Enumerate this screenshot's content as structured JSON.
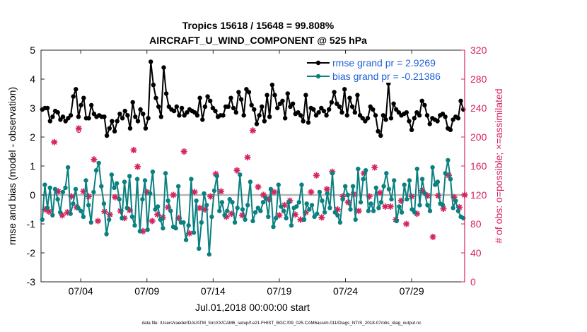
{
  "chart_data": {
    "type": "line",
    "title_line1": "Tropics 15618 / 15648 = 99.808%",
    "title_line2": "AIRCRAFT_U_WIND_COMPONENT @ 525 hPa",
    "xlabel": "Jul.01,2018 00:00:00 start",
    "ylabel_left": "rmse and bias (model - observation)",
    "ylabel_right": "# of obs: o=possible; ×=assimilated",
    "footnote": "data file: /Users/raeder/DAI/ATM_forcXX/CAM6_setup/f.e21.FHIST_BGC.f09_025.CAM6assim.011/Diags_NTrS_2018-07/obs_diag_output.nc",
    "xlim": [
      1,
      33
    ],
    "ylim_left": [
      -3,
      5
    ],
    "ylim_right": [
      0,
      320
    ],
    "x_ticks": [
      4,
      9,
      14,
      19,
      24,
      29
    ],
    "x_tick_labels": [
      "07/04",
      "07/09",
      "07/14",
      "07/19",
      "07/24",
      "07/29"
    ],
    "y_left_ticks": [
      -3,
      -2,
      -1,
      0,
      1,
      2,
      3,
      4,
      5
    ],
    "y_right_ticks": [
      0,
      40,
      80,
      120,
      160,
      200,
      240,
      280,
      320
    ],
    "colors": {
      "rmse": "#000000",
      "bias": "#0a8080",
      "obs": "#d6245e",
      "zero_line": "#b4b4b4",
      "legend_text": "#1f5fd6"
    },
    "series": [
      {
        "name": "rmse grand pr = 2.9269",
        "axis": "left",
        "style": "line-dot",
        "values": [
          2.95,
          3.0,
          3.0,
          2.55,
          2.7,
          2.9,
          2.85,
          2.6,
          2.7,
          2.55,
          2.65,
          2.75,
          3.4,
          3.65,
          2.7,
          3.1,
          3.35,
          2.65,
          2.65,
          3.1,
          2.8,
          2.7,
          2.75,
          2.7,
          2.7,
          2.05,
          2.3,
          2.55,
          2.2,
          2.55,
          2.8,
          2.65,
          2.9,
          2.75,
          2.3,
          3.2,
          2.7,
          2.55,
          2.95,
          2.8,
          2.3,
          2.65,
          4.6,
          3.8,
          3.35,
          3.05,
          2.7,
          4.4,
          3.5,
          3.05,
          2.95,
          2.9,
          3.05,
          2.75,
          3.0,
          2.75,
          2.85,
          2.95,
          2.9,
          2.85,
          2.75,
          3.35,
          2.6,
          3.05,
          3.4,
          3.25,
          3.0,
          2.9,
          2.7,
          2.75,
          2.75,
          3.05,
          3.05,
          3.35,
          3.0,
          2.85,
          3.55,
          3.3,
          2.75,
          3.65,
          3.55,
          3.1,
          2.95,
          2.45,
          2.75,
          3.05,
          2.55,
          3.45,
          2.7,
          3.8,
          3.45,
          3.0,
          3.15,
          3.25,
          2.65,
          3.5,
          3.05,
          3.15,
          2.8,
          2.85,
          2.75,
          2.55,
          3.45,
          2.5,
          3.0,
          2.95,
          2.75,
          2.85,
          3.0,
          2.9,
          2.75,
          2.95,
          3.2,
          3.55,
          3.15,
          3.05,
          2.85,
          3.65,
          2.75,
          3.35,
          3.05,
          2.85,
          3.45,
          2.75,
          2.65,
          2.55,
          2.65,
          3.05,
          2.95,
          2.75,
          2.2,
          2.05,
          2.75,
          2.6,
          3.85,
          2.65,
          3.15,
          2.95,
          2.85,
          2.75,
          2.8,
          2.85,
          2.55,
          2.25,
          2.65,
          2.85,
          2.75,
          3.25,
          3.1,
          2.75,
          2.45,
          2.65,
          2.6,
          2.55,
          2.75,
          2.8,
          2.7,
          2.3,
          2.25,
          2.6,
          2.7,
          2.65,
          3.25,
          2.95
        ]
      },
      {
        "name": "bias grand pr = -0.21386",
        "axis": "left",
        "style": "line-dot",
        "values": [
          -0.85,
          0.35,
          -0.45,
          0.25,
          -0.7,
          0.2,
          -0.15,
          -0.6,
          0.1,
          0.25,
          0.95,
          -0.65,
          -0.3,
          0.2,
          -0.45,
          -0.55,
          -0.75,
          0.5,
          -0.35,
          -0.95,
          0.1,
          0.85,
          1.1,
          0.3,
          -0.3,
          -1.35,
          -0.85,
          0.7,
          0.25,
          0.4,
          -0.15,
          -0.8,
          0.45,
          -0.45,
          0.65,
          -0.75,
          -1.05,
          0.55,
          -1.25,
          -0.15,
          0.5,
          -1.2,
          0.05,
          0.8,
          -0.5,
          -0.4,
          -0.85,
          -1.15,
          0.75,
          -0.2,
          -0.55,
          -1.1,
          -1.15,
          0.3,
          -0.95,
          -0.95,
          -1.55,
          -1.05,
          0.55,
          -1.3,
          -0.2,
          -1.85,
          -0.95,
          0.05,
          -0.35,
          -2.05,
          -0.75,
          0.15,
          0.65,
          -0.55,
          -0.25,
          -0.7,
          -0.55,
          -0.15,
          -0.25,
          -0.95,
          -0.45,
          0.7,
          -0.5,
          -0.85,
          -0.35,
          0.45,
          -0.9,
          -0.6,
          -0.45,
          -0.55,
          -0.25,
          -0.1,
          -0.75,
          0.2,
          -1.1,
          -0.8,
          0.35,
          -0.4,
          -0.55,
          -0.8,
          -0.25,
          -1.05,
          -0.45,
          -0.4,
          -0.25,
          0.35,
          -0.85,
          -0.3,
          -0.5,
          -0.35,
          -0.75,
          -0.65,
          0.1,
          -0.2,
          -0.6,
          0.05,
          -0.45,
          0.75,
          -0.6,
          -0.7,
          -0.95,
          -0.15,
          0.3,
          0.0,
          -0.5,
          0.3,
          -0.85,
          0.9,
          -0.25,
          0.55,
          0.85,
          -0.55,
          -0.3,
          -0.55,
          0.25,
          -0.45,
          -0.25,
          0.3,
          0.75,
          0.2,
          -0.15,
          0.5,
          -0.9,
          -0.4,
          -0.6,
          0.35,
          -0.15,
          0.5,
          -0.5,
          -0.6,
          0.9,
          -0.35,
          0.55,
          0.05,
          -0.35,
          -0.55,
          0.95,
          0.35,
          0.45,
          -0.3,
          -0.35,
          0.75,
          1.2,
          0.55,
          -0.45,
          -0.2,
          -0.55,
          -0.75,
          -0.8
        ]
      },
      {
        "name": "# of obs possible",
        "axis": "right",
        "style": "circle",
        "x": [
          3.85
        ],
        "values": [
          209
        ]
      },
      {
        "name": "# of obs assimilated",
        "axis": "right",
        "style": "star",
        "x": [
          1.3,
          1.6,
          2.0,
          2.3,
          2.6,
          3.0,
          3.3,
          3.7,
          3.85,
          4.2,
          4.6,
          5.0,
          5.3,
          5.8,
          6.2,
          6.6,
          7.0,
          7.3,
          7.7,
          8.0,
          8.3,
          8.7,
          9.0,
          9.4,
          9.8,
          10.2,
          10.6,
          11.0,
          11.4,
          11.8,
          12.2,
          12.6,
          13.0,
          13.4,
          13.8,
          14.2,
          14.6,
          15.0,
          15.4,
          15.8,
          16.2,
          16.6,
          17.0,
          17.4,
          17.8,
          18.2,
          18.6,
          19.0,
          19.4,
          19.8,
          20.2,
          20.6,
          21.0,
          21.4,
          21.8,
          22.2,
          22.6,
          23.0,
          23.4,
          23.8,
          24.2,
          24.6,
          25.0,
          25.4,
          25.8,
          26.2,
          26.6,
          27.0,
          27.4,
          27.8,
          28.2,
          28.6,
          29.0,
          29.4,
          29.8,
          30.2,
          30.6,
          31.0,
          31.4,
          31.8,
          32.2,
          32.6,
          33.0
        ],
        "values": [
          100,
          97,
          193,
          125,
          92,
          96,
          118,
          103,
          212,
          125,
          118,
          169,
          84,
          97,
          93,
          117,
          98,
          88,
          99,
          182,
          159,
          70,
          124,
          84,
          93,
          89,
          103,
          120,
          88,
          180,
          67,
          124,
          102,
          100,
          118,
          149,
          125,
          90,
          94,
          154,
          92,
          172,
          209,
          131,
          120,
          114,
          124,
          92,
          106,
          112,
          93,
          86,
          96,
          124,
          147,
          89,
          128,
          152,
          100,
          118,
          110,
          121,
          98,
          150,
          118,
          158,
          123,
          104,
          104,
          86,
          112,
          80,
          118,
          94,
          126,
          119,
          62,
          119,
          101,
          147,
          117,
          103,
          120
        ]
      }
    ]
  }
}
